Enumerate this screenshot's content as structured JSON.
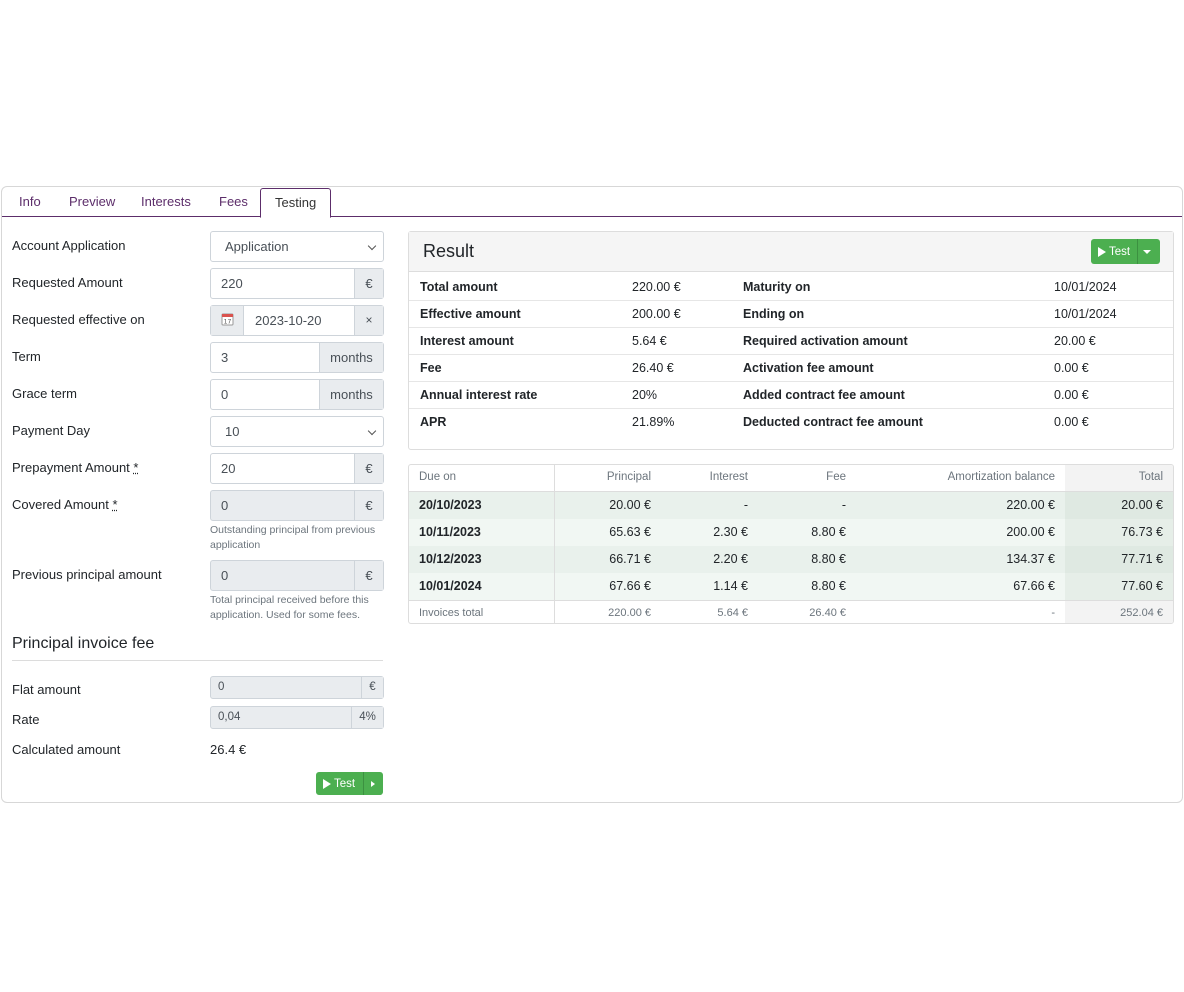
{
  "tabs": [
    {
      "label": "Info"
    },
    {
      "label": "Preview"
    },
    {
      "label": "Interests"
    },
    {
      "label": "Fees"
    },
    {
      "label": "Testing",
      "active": true
    }
  ],
  "form": {
    "account_application": {
      "label": "Account Application",
      "value": "Application"
    },
    "requested_amount": {
      "label": "Requested Amount",
      "value": "220",
      "unit": "€"
    },
    "requested_effective_on": {
      "label": "Requested effective on",
      "value": "2023-10-20",
      "clear": "×",
      "icon": "calendar-icon"
    },
    "term": {
      "label": "Term",
      "value": "3",
      "unit": "months"
    },
    "grace_term": {
      "label": "Grace term",
      "value": "0",
      "unit": "months"
    },
    "payment_day": {
      "label": "Payment Day",
      "value": "10"
    },
    "prepayment_amount": {
      "label": "Prepayment Amount",
      "required": "*",
      "value": "20",
      "unit": "€"
    },
    "covered_amount": {
      "label": "Covered Amount",
      "required": "*",
      "value": "0",
      "unit": "€",
      "help": "Outstanding principal from previous application"
    },
    "previous_principal_amount": {
      "label": "Previous principal amount",
      "value": "0",
      "unit": "€",
      "help": "Total principal received before this application. Used for some fees."
    }
  },
  "fee_section": {
    "title": "Principal invoice fee",
    "flat_amount": {
      "label": "Flat amount",
      "value": "0",
      "unit": "€"
    },
    "rate": {
      "label": "Rate",
      "value": "0,04",
      "unit": "4%"
    },
    "calculated_amount": {
      "label": "Calculated amount",
      "value": "26.4 €"
    },
    "test_button": "Test"
  },
  "result": {
    "title": "Result",
    "test_button": "Test",
    "rows": [
      {
        "k1": "Total amount",
        "v1": "220.00 €",
        "k2": "Maturity on",
        "v2": "10/01/2024"
      },
      {
        "k1": "Effective amount",
        "v1": "200.00 €",
        "k2": "Ending on",
        "v2": "10/01/2024"
      },
      {
        "k1": "Interest amount",
        "v1": "5.64 €",
        "k2": "Required activation amount",
        "v2": "20.00 €"
      },
      {
        "k1": "Fee",
        "v1": "26.40 €",
        "k2": "Activation fee amount",
        "v2": "0.00 €"
      },
      {
        "k1": "Annual interest rate",
        "v1": "20%",
        "k2": "Added contract fee amount",
        "v2": "0.00 €"
      },
      {
        "k1": "APR",
        "v1": "21.89%",
        "k2": "Deducted contract fee amount",
        "v2": "0.00 €"
      }
    ]
  },
  "schedule": {
    "headers": {
      "due_on": "Due on",
      "principal": "Principal",
      "interest": "Interest",
      "fee": "Fee",
      "balance": "Amortization balance",
      "total": "Total"
    },
    "rows": [
      {
        "due_on": "20/10/2023",
        "principal": "20.00 €",
        "interest": "-",
        "fee": "-",
        "balance": "220.00 €",
        "total": "20.00 €"
      },
      {
        "due_on": "10/11/2023",
        "principal": "65.63 €",
        "interest": "2.30 €",
        "fee": "8.80 €",
        "balance": "200.00 €",
        "total": "76.73 €"
      },
      {
        "due_on": "10/12/2023",
        "principal": "66.71 €",
        "interest": "2.20 €",
        "fee": "8.80 €",
        "balance": "134.37 €",
        "total": "77.71 €"
      },
      {
        "due_on": "10/01/2024",
        "principal": "67.66 €",
        "interest": "1.14 €",
        "fee": "8.80 €",
        "balance": "67.66 €",
        "total": "77.60 €"
      }
    ],
    "footer": {
      "due_on": "Invoices total",
      "principal": "220.00 €",
      "interest": "5.64 €",
      "fee": "26.40 €",
      "balance": "-",
      "total": "252.04 €"
    }
  },
  "colors": {
    "accent": "#5c2d6a",
    "success": "#4caf50"
  }
}
